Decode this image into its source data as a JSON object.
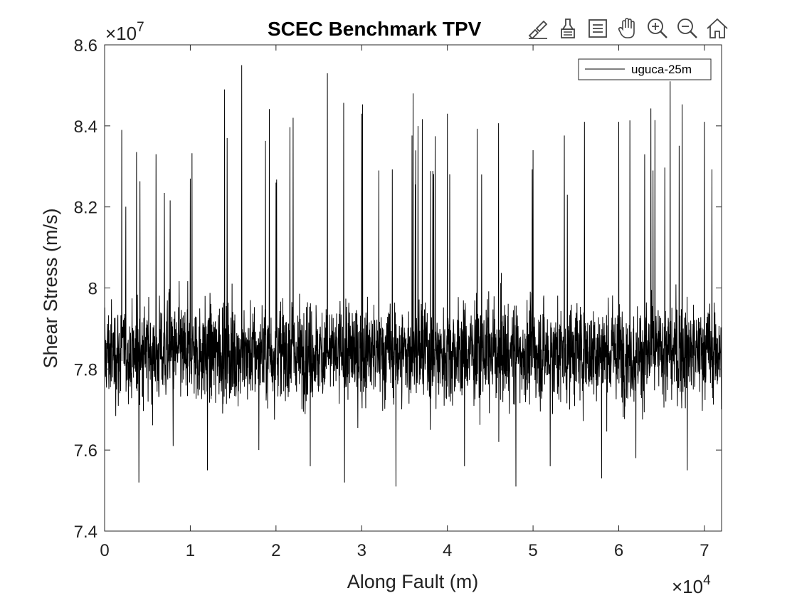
{
  "chart_data": {
    "type": "line",
    "title": "SCEC Benchmark TPV",
    "xlabel": "Along Fault (m)",
    "ylabel": "Shear Stress (m/s)",
    "xlim": [
      0,
      72000
    ],
    "ylim": [
      74000000,
      86000000
    ],
    "x_ticks": [
      "0",
      "1",
      "2",
      "3",
      "4",
      "5",
      "6",
      "7"
    ],
    "y_ticks": [
      "7.4",
      "7.6",
      "7.8",
      "8",
      "8.2",
      "8.4",
      "8.6"
    ],
    "x_exponent": {
      "base": "×10",
      "power": "4"
    },
    "y_exponent": {
      "base": "×10",
      "power": "7"
    },
    "grid": false,
    "legend_position": "top-right",
    "series": [
      {
        "name": "uguca-25m",
        "color": "#000000",
        "sampling": "noisy signal around 7.84e7, min ≈ 7.50e7, max ≈ 8.55e7 (representative points shown)",
        "x": [
          0,
          2000,
          4000,
          6000,
          8000,
          10000,
          12000,
          14000,
          16000,
          18000,
          20000,
          22000,
          24000,
          26000,
          28000,
          30000,
          32000,
          34000,
          36000,
          38000,
          40000,
          42000,
          44000,
          46000,
          48000,
          50000,
          52000,
          54000,
          56000,
          58000,
          60000,
          62000,
          64000,
          66000,
          68000,
          70000,
          72000
        ],
        "y": [
          78400000,
          83900000,
          75200000,
          83300000,
          76100000,
          82700000,
          75500000,
          84900000,
          85500000,
          76000000,
          82600000,
          84200000,
          75600000,
          85300000,
          75200000,
          84300000,
          82900000,
          75100000,
          84800000,
          76500000,
          84300000,
          75600000,
          82800000,
          76200000,
          75100000,
          83400000,
          75600000,
          82300000,
          84100000,
          75300000,
          84100000,
          75800000,
          82900000,
          85100000,
          75500000,
          84100000,
          78000000
        ]
      }
    ]
  },
  "toolbar": [
    {
      "name": "brush-edit-icon"
    },
    {
      "name": "data-tips-icon"
    },
    {
      "name": "legend-icon"
    },
    {
      "name": "pan-hand-icon"
    },
    {
      "name": "zoom-in-icon"
    },
    {
      "name": "zoom-out-icon"
    },
    {
      "name": "home-icon"
    }
  ]
}
